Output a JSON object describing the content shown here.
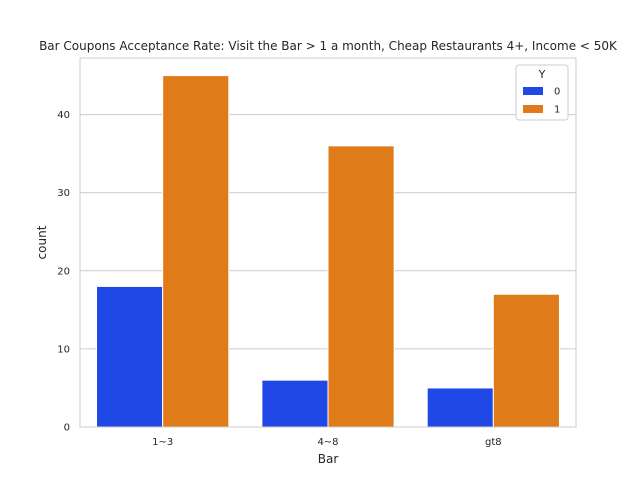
{
  "chart_data": {
    "type": "bar",
    "title": "Bar Coupons Acceptance Rate: Visit the Bar > 1 a month, Cheap Restaurants 4+, Income < 50K",
    "xlabel": "Bar",
    "ylabel": "count",
    "categories": [
      "1~3",
      "4~8",
      "gt8"
    ],
    "series": [
      {
        "name": "0",
        "values": [
          18,
          6,
          5
        ],
        "color": "#1f48e6"
      },
      {
        "name": "1",
        "values": [
          45,
          36,
          17
        ],
        "color": "#e07b1a"
      }
    ],
    "ylim": [
      0,
      47.25
    ],
    "yticks": [
      0,
      10,
      20,
      30,
      40
    ],
    "grid": true,
    "legend": {
      "title": "Y",
      "placement": "top-right"
    }
  }
}
